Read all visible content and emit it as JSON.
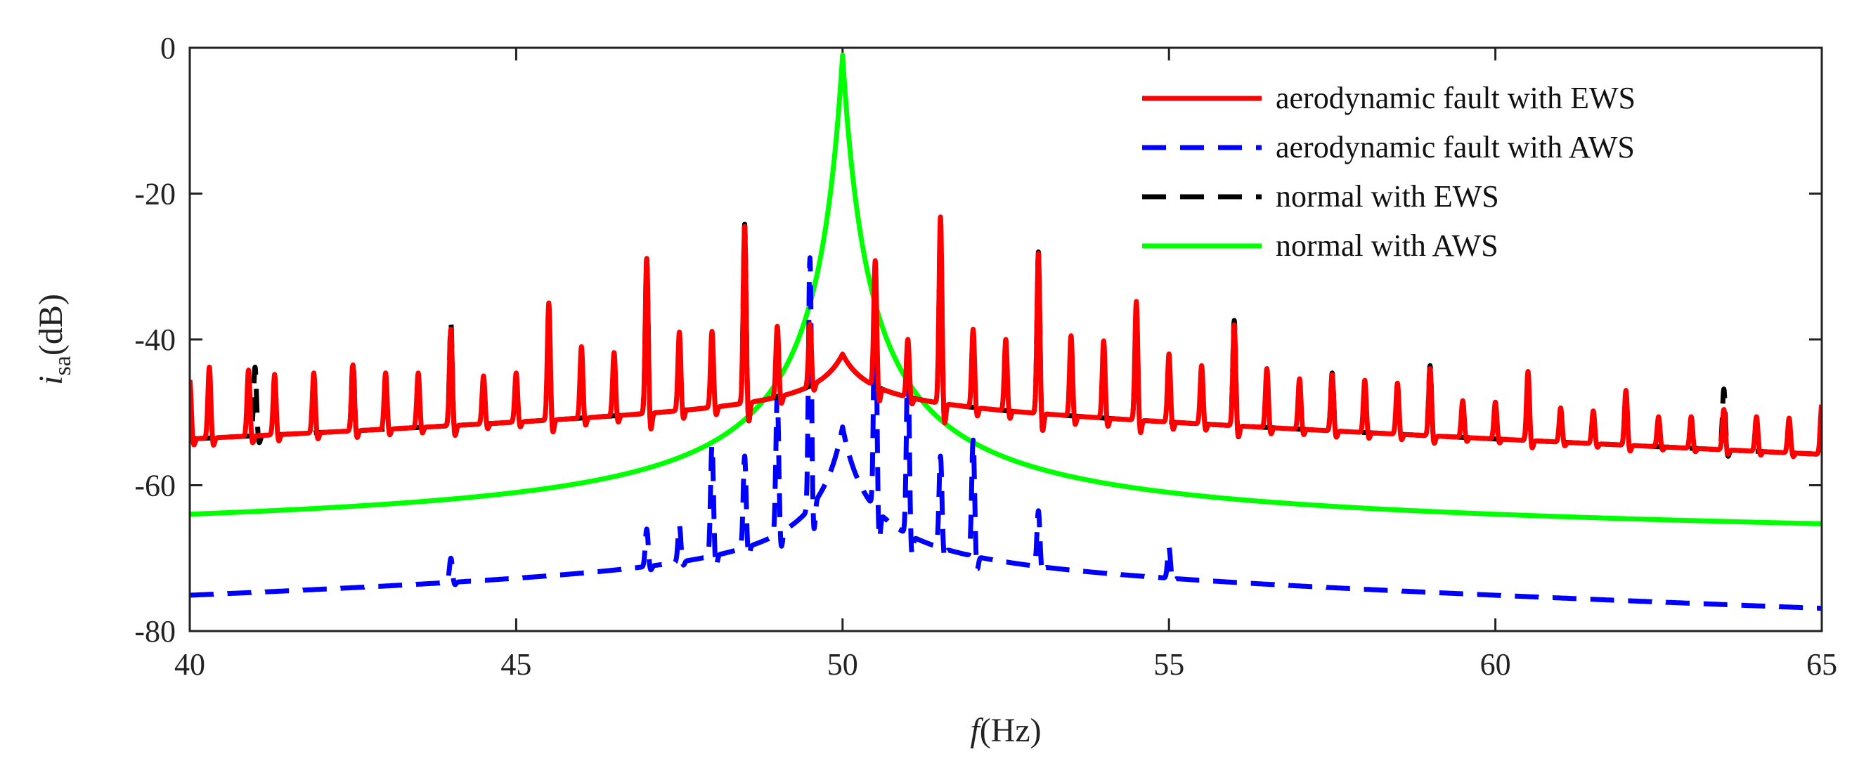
{
  "chart_data": {
    "type": "line",
    "xlabel_italic": "f",
    "xlabel_rest": "(Hz)",
    "ylabel_main": "i",
    "ylabel_sub": "sa",
    "ylabel_rest": "(dB)",
    "xlim": [
      40,
      65
    ],
    "ylim": [
      -80,
      0
    ],
    "xticks": [
      40,
      45,
      50,
      55,
      60,
      65
    ],
    "yticks": [
      0,
      -20,
      -40,
      -60,
      -80
    ],
    "legend_position": "top-right",
    "series": [
      {
        "name": "aerodynamic fault with EWS",
        "color": "#ff0000",
        "dash": "solid",
        "base": {
          "f0": 50,
          "level0": -42,
          "levelFar": -50,
          "slopeFar": -0.4
        },
        "spikes": [
          {
            "x": 40.0,
            "y": -45.6
          },
          {
            "x": 40.3,
            "y": -43.8
          },
          {
            "x": 40.9,
            "y": -44.2
          },
          {
            "x": 41.3,
            "y": -44.8
          },
          {
            "x": 41.9,
            "y": -44.6
          },
          {
            "x": 42.5,
            "y": -43.5
          },
          {
            "x": 43.0,
            "y": -44.6
          },
          {
            "x": 43.5,
            "y": -44.6
          },
          {
            "x": 44.0,
            "y": -38.6
          },
          {
            "x": 44.5,
            "y": -45.0
          },
          {
            "x": 45.0,
            "y": -44.6
          },
          {
            "x": 45.5,
            "y": -35.0
          },
          {
            "x": 46.0,
            "y": -41.0
          },
          {
            "x": 46.5,
            "y": -41.8
          },
          {
            "x": 47.0,
            "y": -28.9
          },
          {
            "x": 47.5,
            "y": -39.0
          },
          {
            "x": 48.0,
            "y": -38.9
          },
          {
            "x": 48.5,
            "y": -24.5
          },
          {
            "x": 49.0,
            "y": -38.2
          },
          {
            "x": 49.5,
            "y": -37.9
          },
          {
            "x": 50.5,
            "y": -29.2
          },
          {
            "x": 51.0,
            "y": -40.0
          },
          {
            "x": 51.5,
            "y": -23.2
          },
          {
            "x": 52.0,
            "y": -38.6
          },
          {
            "x": 52.5,
            "y": -40.0
          },
          {
            "x": 53.0,
            "y": -28.2
          },
          {
            "x": 53.5,
            "y": -39.5
          },
          {
            "x": 54.0,
            "y": -40.2
          },
          {
            "x": 54.5,
            "y": -34.8
          },
          {
            "x": 55.0,
            "y": -42.0
          },
          {
            "x": 55.5,
            "y": -43.6
          },
          {
            "x": 56.0,
            "y": -38.0
          },
          {
            "x": 56.5,
            "y": -44.0
          },
          {
            "x": 57.0,
            "y": -45.4
          },
          {
            "x": 57.5,
            "y": -44.8
          },
          {
            "x": 58.0,
            "y": -45.6
          },
          {
            "x": 58.5,
            "y": -46.0
          },
          {
            "x": 59.0,
            "y": -44.0
          },
          {
            "x": 59.5,
            "y": -48.4
          },
          {
            "x": 60.0,
            "y": -48.6
          },
          {
            "x": 60.5,
            "y": -44.4
          },
          {
            "x": 61.0,
            "y": -49.4
          },
          {
            "x": 61.5,
            "y": -49.8
          },
          {
            "x": 62.0,
            "y": -47.0
          },
          {
            "x": 62.5,
            "y": -50.6
          },
          {
            "x": 63.0,
            "y": -50.6
          },
          {
            "x": 63.5,
            "y": -49.6
          },
          {
            "x": 64.0,
            "y": -50.6
          },
          {
            "x": 64.5,
            "y": -50.8
          },
          {
            "x": 65.0,
            "y": -49.0
          }
        ]
      },
      {
        "name": "aerodynamic fault with AWS",
        "color": "#0000ff",
        "dash": "dashed",
        "base": {
          "f0": 50,
          "level0": -52,
          "levelFar": -73,
          "slopeFar": -0.3
        },
        "spikes": [
          {
            "x": 44.0,
            "y": -70.0
          },
          {
            "x": 47.0,
            "y": -66.0
          },
          {
            "x": 47.5,
            "y": -65.5
          },
          {
            "x": 48.0,
            "y": -54.5
          },
          {
            "x": 48.5,
            "y": -56.0
          },
          {
            "x": 49.0,
            "y": -47.8
          },
          {
            "x": 49.5,
            "y": -28.8
          },
          {
            "x": 50.5,
            "y": -29.5
          },
          {
            "x": 51.0,
            "y": -43.0
          },
          {
            "x": 51.5,
            "y": -56.0
          },
          {
            "x": 52.0,
            "y": -53.8
          },
          {
            "x": 53.0,
            "y": -63.5
          },
          {
            "x": 55.0,
            "y": -68.5
          }
        ]
      },
      {
        "name": "normal with EWS",
        "color": "#000000",
        "dash": "dashed",
        "base": {
          "f0": 50,
          "level0": -42,
          "levelFar": -50,
          "slopeFar": -0.4
        },
        "spikes": [
          {
            "x": 41.0,
            "y": -43.8
          },
          {
            "x": 42.5,
            "y": -43.0
          },
          {
            "x": 44.0,
            "y": -37.8
          },
          {
            "x": 45.5,
            "y": -36.0
          },
          {
            "x": 47.0,
            "y": -28.9
          },
          {
            "x": 48.5,
            "y": -24.2
          },
          {
            "x": 51.5,
            "y": -24.5
          },
          {
            "x": 53.0,
            "y": -28.0
          },
          {
            "x": 54.5,
            "y": -35.8
          },
          {
            "x": 56.0,
            "y": -37.4
          },
          {
            "x": 57.5,
            "y": -44.6
          },
          {
            "x": 59.0,
            "y": -43.6
          },
          {
            "x": 60.5,
            "y": -46.4
          },
          {
            "x": 62.0,
            "y": -47.6
          },
          {
            "x": 63.5,
            "y": -46.8
          },
          {
            "x": 65.0,
            "y": -49.0
          }
        ]
      },
      {
        "name": "normal with AWS",
        "color": "#00ff00",
        "dash": "solid",
        "base": {
          "f0": 50,
          "level0": -1,
          "levelFar": -66,
          "slopeFar": -0.08
        },
        "spikes": []
      }
    ]
  }
}
